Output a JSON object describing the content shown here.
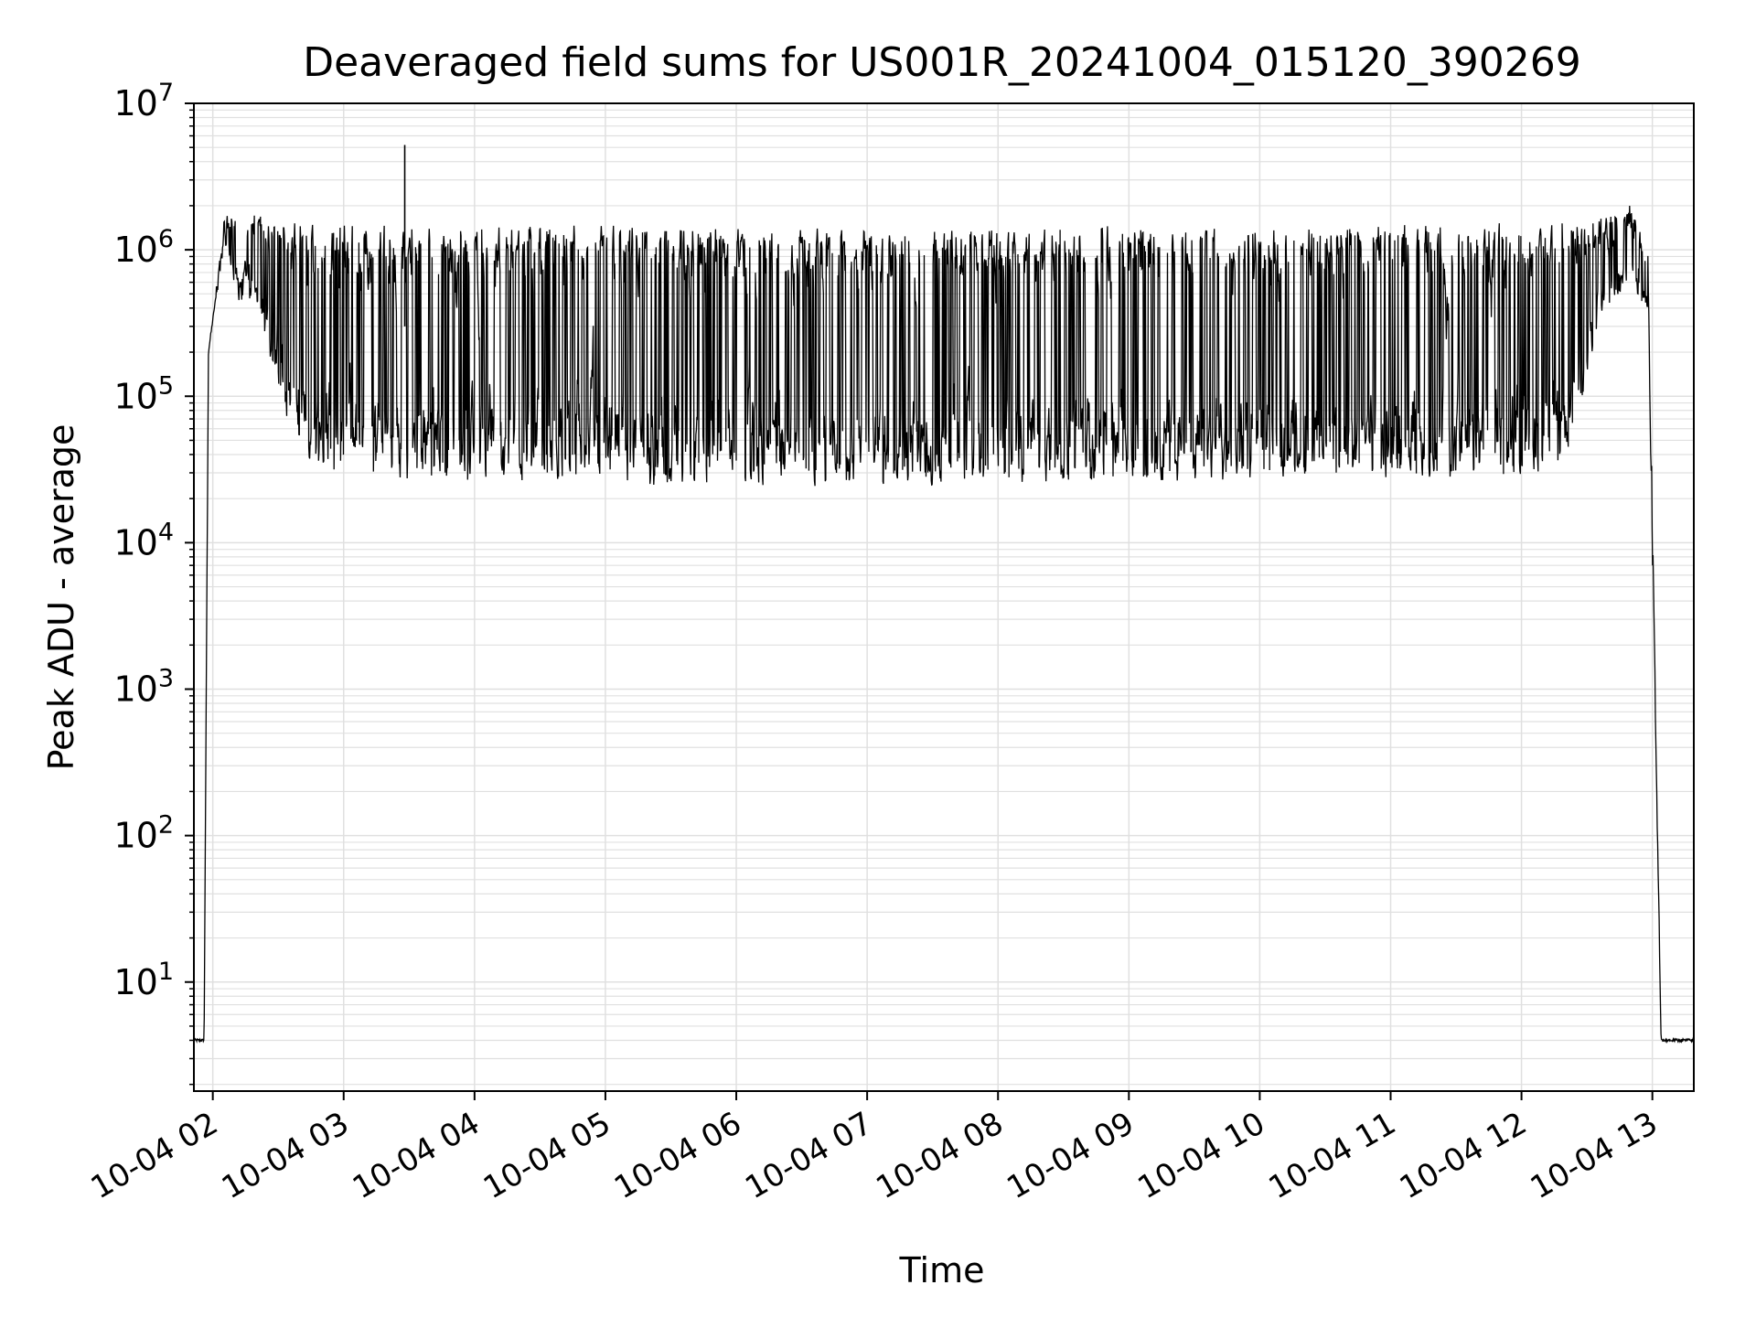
{
  "chart_data": {
    "type": "line",
    "title": "Deaveraged field sums for US001R_20241004_015120_390269",
    "xlabel": "Time",
    "ylabel": "Peak ADU - average",
    "y_scale": "log",
    "ylim": [
      1.8,
      10000000
    ],
    "xlim": [
      "2024-10-04T01:51:20",
      "2024-10-04T13:19:00"
    ],
    "grid": true,
    "grid_color": "#e0e0e0",
    "line_color": "#000000",
    "x_ticks": [
      {
        "time": "2024-10-04T02:00:00",
        "label": "10-04 02"
      },
      {
        "time": "2024-10-04T03:00:00",
        "label": "10-04 03"
      },
      {
        "time": "2024-10-04T04:00:00",
        "label": "10-04 04"
      },
      {
        "time": "2024-10-04T05:00:00",
        "label": "10-04 05"
      },
      {
        "time": "2024-10-04T06:00:00",
        "label": "10-04 06"
      },
      {
        "time": "2024-10-04T07:00:00",
        "label": "10-04 07"
      },
      {
        "time": "2024-10-04T08:00:00",
        "label": "10-04 08"
      },
      {
        "time": "2024-10-04T09:00:00",
        "label": "10-04 09"
      },
      {
        "time": "2024-10-04T10:00:00",
        "label": "10-04 10"
      },
      {
        "time": "2024-10-04T11:00:00",
        "label": "10-04 11"
      },
      {
        "time": "2024-10-04T12:00:00",
        "label": "10-04 12"
      },
      {
        "time": "2024-10-04T13:00:00",
        "label": "10-04 13"
      }
    ],
    "y_ticks": [
      {
        "value": 10,
        "base": "10",
        "exp": "1"
      },
      {
        "value": 100,
        "base": "10",
        "exp": "2"
      },
      {
        "value": 1000,
        "base": "10",
        "exp": "3"
      },
      {
        "value": 10000,
        "base": "10",
        "exp": "4"
      },
      {
        "value": 100000,
        "base": "10",
        "exp": "5"
      },
      {
        "value": 1000000,
        "base": "10",
        "exp": "6"
      },
      {
        "value": 10000000,
        "base": "10",
        "exp": "7"
      }
    ],
    "series": [
      {
        "values_note_free": true,
        "envelope": [
          {
            "time": "2024-10-04T01:51:20",
            "low": 4,
            "high": 4
          },
          {
            "time": "2024-10-04T01:56:00",
            "low": 4,
            "high": 4
          },
          {
            "time": "2024-10-04T01:58:00",
            "low": 200000,
            "high": 200000
          },
          {
            "time": "2024-10-04T02:05:00",
            "low": 1200000,
            "high": 1500000
          },
          {
            "time": "2024-10-04T02:12:00",
            "low": 500000,
            "high": 1500000
          },
          {
            "time": "2024-10-04T02:20:00",
            "low": 500000,
            "high": 1600000
          },
          {
            "time": "2024-10-04T02:35:00",
            "low": 60000,
            "high": 1400000
          },
          {
            "time": "2024-10-04T02:45:00",
            "low": 35000,
            "high": 1300000
          },
          {
            "time": "2024-10-04T03:30:00",
            "low": 30000,
            "high": 1300000
          },
          {
            "time": "2024-10-04T05:30:00",
            "low": 28000,
            "high": 1300000
          },
          {
            "time": "2024-10-04T07:30:00",
            "low": 28000,
            "high": 1200000
          },
          {
            "time": "2024-10-04T09:30:00",
            "low": 30000,
            "high": 1300000
          },
          {
            "time": "2024-10-04T11:30:00",
            "low": 30000,
            "high": 1300000
          },
          {
            "time": "2024-10-04T12:20:00",
            "low": 35000,
            "high": 1400000
          },
          {
            "time": "2024-10-04T12:35:00",
            "low": 300000,
            "high": 1400000
          },
          {
            "time": "2024-10-04T12:50:00",
            "low": 700000,
            "high": 1800000
          },
          {
            "time": "2024-10-04T12:58:00",
            "low": 400000,
            "high": 900000
          },
          {
            "time": "2024-10-04T13:04:00",
            "low": 4,
            "high": 4
          },
          {
            "time": "2024-10-04T13:19:00",
            "low": 4,
            "high": 4
          }
        ],
        "spike": {
          "time": "2024-10-04T03:28:00",
          "value": 5200000
        }
      }
    ]
  }
}
